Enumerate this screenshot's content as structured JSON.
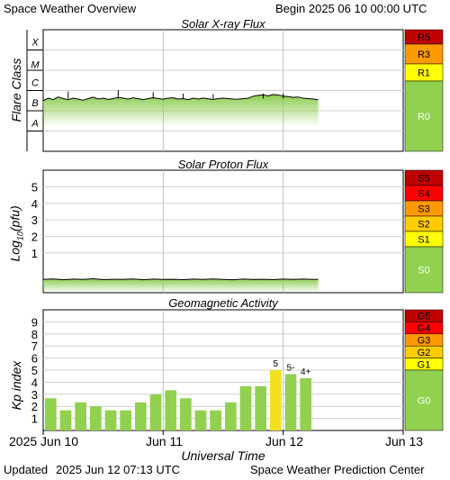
{
  "header": {
    "title": "Space Weather Overview",
    "begin": "Begin 2025 06 10 00:00 UTC"
  },
  "footer": {
    "updated_label": "Updated",
    "updated_time": "2025 Jun 12 07:13 UTC",
    "credit": "Space Weather Prediction Center"
  },
  "x_axis": {
    "label": "Universal Time",
    "ticks": [
      "2025 Jun 10",
      "Jun 11",
      "Jun 12",
      "Jun 13"
    ]
  },
  "colors": {
    "fill_green": "#8ccc50",
    "kp_green": "#92d050",
    "kp_yellow": "#f0e020",
    "grid": "#d0d0d0",
    "scale_red_dark": "#c00000",
    "scale_red": "#ff0000",
    "scale_orange": "#ff9900",
    "scale_gold": "#ffcc00",
    "scale_yellow": "#ffff00",
    "scale_green": "#92d050"
  },
  "chart_data": [
    {
      "type": "area",
      "title": "Solar X-ray Flux",
      "ylabel": "Flare Class",
      "y_ticks": [
        "X",
        "M",
        "C",
        "B",
        "A"
      ],
      "grid": true,
      "x_unit": "hours since 2025 Jun 10 00:00 UTC",
      "xlim": [
        0,
        72
      ],
      "ylim": [
        0,
        6
      ],
      "series": [
        {
          "x": [
            0,
            1,
            2,
            3,
            4,
            5,
            6,
            7,
            8,
            9,
            10,
            11,
            12,
            13,
            14,
            15,
            16,
            17,
            18,
            19,
            20,
            21,
            22,
            23,
            24,
            25,
            26,
            27,
            28,
            29,
            30,
            31,
            32,
            33,
            34,
            35,
            36,
            37,
            38,
            39,
            40,
            41,
            42,
            43,
            44,
            45,
            46,
            47,
            48,
            49,
            50,
            51,
            52,
            53,
            54,
            55
          ],
          "values": [
            2.5,
            2.62,
            2.55,
            2.68,
            2.6,
            2.55,
            2.62,
            2.58,
            2.52,
            2.6,
            2.67,
            2.58,
            2.62,
            2.56,
            2.6,
            2.66,
            2.62,
            2.58,
            2.64,
            2.6,
            2.55,
            2.6,
            2.65,
            2.6,
            2.57,
            2.62,
            2.64,
            2.58,
            2.6,
            2.55,
            2.62,
            2.58,
            2.63,
            2.59,
            2.56,
            2.6,
            2.62,
            2.6,
            2.58,
            2.57,
            2.6,
            2.62,
            2.72,
            2.76,
            2.78,
            2.74,
            2.8,
            2.78,
            2.72,
            2.7,
            2.66,
            2.68,
            2.62,
            2.6,
            2.58,
            2.55
          ],
          "spikes": [
            [
              5,
              2.95
            ],
            [
              15,
              3.02
            ],
            [
              22,
              2.92
            ],
            [
              28,
              2.85
            ],
            [
              34,
              2.82
            ],
            [
              44,
              2.85
            ],
            [
              48,
              2.85
            ]
          ]
        }
      ],
      "scales": [
        "R5",
        "R3",
        "R1",
        "R0"
      ]
    },
    {
      "type": "area",
      "title": "Solar Proton Flux",
      "ylabel": "Log10(pfu)",
      "ylabel_base": "Log",
      "ylabel_sub": "10",
      "ylabel_rest": "(pfu)",
      "y_ticks": [
        "5",
        "4",
        "3",
        "2",
        "1"
      ],
      "grid": true,
      "x_unit": "hours since 2025 Jun 10 00:00 UTC",
      "xlim": [
        0,
        72
      ],
      "ylim": [
        -1.4,
        6
      ],
      "series": [
        {
          "x": [
            0,
            2,
            4,
            6,
            8,
            10,
            12,
            14,
            16,
            18,
            20,
            22,
            24,
            26,
            28,
            30,
            32,
            34,
            36,
            38,
            40,
            42,
            44,
            46,
            48,
            50,
            52,
            54,
            55
          ],
          "values": [
            -0.6,
            -0.57,
            -0.62,
            -0.58,
            -0.6,
            -0.56,
            -0.61,
            -0.59,
            -0.6,
            -0.57,
            -0.62,
            -0.58,
            -0.6,
            -0.59,
            -0.61,
            -0.58,
            -0.6,
            -0.57,
            -0.6,
            -0.62,
            -0.58,
            -0.6,
            -0.59,
            -0.61,
            -0.58,
            -0.6,
            -0.58,
            -0.6,
            -0.59
          ]
        }
      ],
      "scales": [
        "S5",
        "S4",
        "S3",
        "S2",
        "S1",
        "S0"
      ]
    },
    {
      "type": "bar",
      "title": "Geomagnetic Activity",
      "ylabel": "Kp index",
      "y_ticks": [
        "9",
        "8",
        "7",
        "6",
        "5",
        "4",
        "3",
        "2",
        "1"
      ],
      "ylim": [
        0,
        10
      ],
      "grid": true,
      "x_unit": "hours since 2025 Jun 10 00:00 UTC",
      "bar_interval_hours": 3,
      "values": [
        2.67,
        1.67,
        2.33,
        2.0,
        1.67,
        1.67,
        2.33,
        3.0,
        3.33,
        2.67,
        1.67,
        1.67,
        2.33,
        3.67,
        3.67,
        5.0,
        4.67,
        4.33
      ],
      "bar_colors": [
        "green",
        "green",
        "green",
        "green",
        "green",
        "green",
        "green",
        "green",
        "green",
        "green",
        "green",
        "green",
        "green",
        "green",
        "green",
        "yellow",
        "green",
        "green"
      ],
      "data_labels": [
        {
          "index": 15,
          "text": "5"
        },
        {
          "index": 16,
          "text": "5-"
        },
        {
          "index": 17,
          "text": "4+"
        }
      ],
      "scales": [
        "G5",
        "G4",
        "G3",
        "G2",
        "G1",
        "G0"
      ]
    }
  ]
}
